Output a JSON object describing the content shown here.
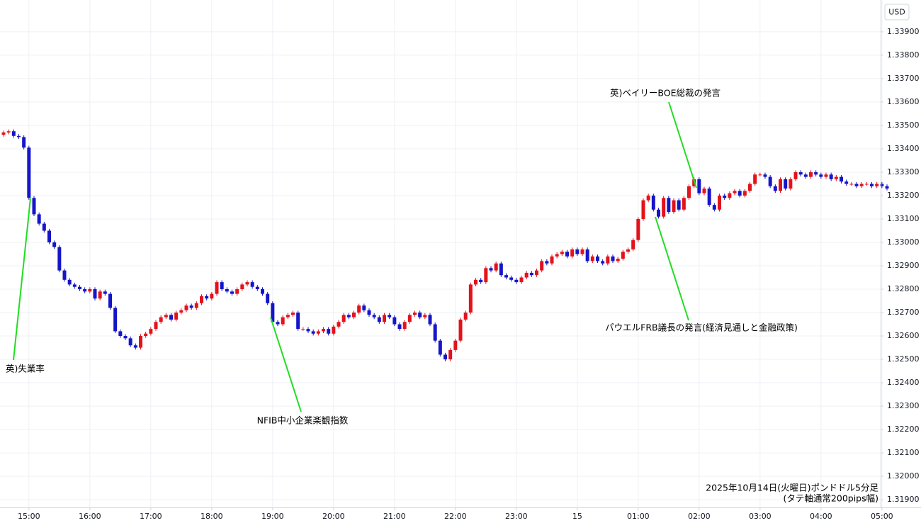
{
  "chart_data": {
    "type": "candlestick",
    "currency": "USD",
    "up_color": "#e3121b",
    "down_color": "#1515c8",
    "grid": true,
    "ylim": [
      1.31867,
      1.34036
    ],
    "yticks": [
      {
        "value": 1.319,
        "label": "1.31900"
      },
      {
        "value": 1.32,
        "label": "1.32000"
      },
      {
        "value": 1.321,
        "label": "1.32100"
      },
      {
        "value": 1.322,
        "label": "1.32200"
      },
      {
        "value": 1.323,
        "label": "1.32300"
      },
      {
        "value": 1.324,
        "label": "1.32400"
      },
      {
        "value": 1.325,
        "label": "1.32500"
      },
      {
        "value": 1.326,
        "label": "1.32600"
      },
      {
        "value": 1.327,
        "label": "1.32700"
      },
      {
        "value": 1.328,
        "label": "1.32800"
      },
      {
        "value": 1.329,
        "label": "1.32900"
      },
      {
        "value": 1.33,
        "label": "1.33000"
      },
      {
        "value": 1.331,
        "label": "1.33100"
      },
      {
        "value": 1.332,
        "label": "1.33200"
      },
      {
        "value": 1.333,
        "label": "1.33300"
      },
      {
        "value": 1.334,
        "label": "1.33400"
      },
      {
        "value": 1.335,
        "label": "1.33500"
      },
      {
        "value": 1.336,
        "label": "1.33600"
      },
      {
        "value": 1.337,
        "label": "1.33700"
      },
      {
        "value": 1.338,
        "label": "1.33800"
      },
      {
        "value": 1.339,
        "label": "1.33900"
      }
    ],
    "xticks": [
      {
        "value": "15:00",
        "label": "15:00"
      },
      {
        "value": "16:00",
        "label": "16:00"
      },
      {
        "value": "17:00",
        "label": "17:00"
      },
      {
        "value": "18:00",
        "label": "18:00"
      },
      {
        "value": "19:00",
        "label": "19:00"
      },
      {
        "value": "20:00",
        "label": "20:00"
      },
      {
        "value": "21:00",
        "label": "21:00"
      },
      {
        "value": "22:00",
        "label": "22:00"
      },
      {
        "value": "23:00",
        "label": "23:00"
      },
      {
        "value": "00:00",
        "label": "15"
      },
      {
        "value": "01:00",
        "label": "01:00"
      },
      {
        "value": "02:00",
        "label": "02:00"
      },
      {
        "value": "03:00",
        "label": "03:00"
      },
      {
        "value": "04:00",
        "label": "04:00"
      },
      {
        "value": "05:00",
        "label": "05:00"
      }
    ],
    "x": [
      "14:35",
      "14:40",
      "14:45",
      "14:50",
      "14:55",
      "15:00",
      "15:05",
      "15:10",
      "15:15",
      "15:20",
      "15:25",
      "15:30",
      "15:35",
      "15:40",
      "15:45",
      "15:50",
      "15:55",
      "16:00",
      "16:05",
      "16:10",
      "16:15",
      "16:20",
      "16:25",
      "16:30",
      "16:35",
      "16:40",
      "16:45",
      "16:50",
      "16:55",
      "17:00",
      "17:05",
      "17:10",
      "17:15",
      "17:20",
      "17:25",
      "17:30",
      "17:35",
      "17:40",
      "17:45",
      "17:50",
      "17:55",
      "18:00",
      "18:05",
      "18:10",
      "18:15",
      "18:20",
      "18:25",
      "18:30",
      "18:35",
      "18:40",
      "18:45",
      "18:50",
      "18:55",
      "19:00",
      "19:05",
      "19:10",
      "19:15",
      "19:20",
      "19:25",
      "19:30",
      "19:35",
      "19:40",
      "19:45",
      "19:50",
      "19:55",
      "20:00",
      "20:05",
      "20:10",
      "20:15",
      "20:20",
      "20:25",
      "20:30",
      "20:35",
      "20:40",
      "20:45",
      "20:50",
      "20:55",
      "21:00",
      "21:05",
      "21:10",
      "21:15",
      "21:20",
      "21:25",
      "21:30",
      "21:35",
      "21:40",
      "21:45",
      "21:50",
      "21:55",
      "22:00",
      "22:05",
      "22:10",
      "22:15",
      "22:20",
      "22:25",
      "22:30",
      "22:35",
      "22:40",
      "22:45",
      "22:50",
      "22:55",
      "23:00",
      "23:05",
      "23:10",
      "23:15",
      "23:20",
      "23:25",
      "23:30",
      "23:35",
      "23:40",
      "23:45",
      "23:50",
      "23:55",
      "00:00",
      "00:05",
      "00:10",
      "00:15",
      "00:20",
      "00:25",
      "00:30",
      "00:35",
      "00:40",
      "00:45",
      "00:50",
      "00:55",
      "01:00",
      "01:05",
      "01:10",
      "01:15",
      "01:20",
      "01:25",
      "01:30",
      "01:35",
      "01:40",
      "01:45",
      "01:50",
      "01:55",
      "02:00",
      "02:05",
      "02:10",
      "02:15",
      "02:20",
      "02:25",
      "02:30",
      "02:35",
      "02:40",
      "02:45",
      "02:50",
      "02:55",
      "03:00",
      "03:05",
      "03:10",
      "03:15",
      "03:20",
      "03:25",
      "03:30",
      "03:35",
      "03:40",
      "03:45",
      "03:50",
      "03:55",
      "04:00",
      "04:05",
      "04:10",
      "04:15",
      "04:20",
      "04:25",
      "04:30",
      "04:35",
      "04:40",
      "04:45",
      "04:50",
      "04:55",
      "05:00",
      "05:05"
    ],
    "open": [
      1.3346,
      1.3347,
      1.33475,
      1.33455,
      1.3345,
      1.33405,
      1.3319,
      1.3312,
      1.3308,
      1.3305,
      1.33,
      1.3298,
      1.3288,
      1.3284,
      1.3282,
      1.3281,
      1.328,
      1.3279,
      1.328,
      1.3276,
      1.3279,
      1.3278,
      1.3272,
      1.3262,
      1.326,
      1.3259,
      1.3256,
      1.3255,
      1.326,
      1.3261,
      1.3263,
      1.3266,
      1.3268,
      1.3269,
      1.3267,
      1.327,
      1.3271,
      1.3273,
      1.3272,
      1.3274,
      1.3277,
      1.3276,
      1.3278,
      1.3283,
      1.328,
      1.3279,
      1.3278,
      1.328,
      1.3282,
      1.3283,
      1.3281,
      1.328,
      1.3278,
      1.3274,
      1.3266,
      1.3265,
      1.3268,
      1.3269,
      1.327,
      1.3263,
      1.3263,
      1.3262,
      1.3261,
      1.3262,
      1.3263,
      1.3261,
      1.3264,
      1.3266,
      1.3269,
      1.3268,
      1.327,
      1.3273,
      1.3271,
      1.3269,
      1.3268,
      1.3266,
      1.3269,
      1.3268,
      1.3265,
      1.3263,
      1.3266,
      1.3269,
      1.327,
      1.3268,
      1.3269,
      1.3265,
      1.3258,
      1.3252,
      1.325,
      1.3254,
      1.3258,
      1.3267,
      1.327,
      1.3282,
      1.3284,
      1.3283,
      1.3289,
      1.3288,
      1.3291,
      1.3286,
      1.3285,
      1.3284,
      1.3283,
      1.3285,
      1.3287,
      1.3286,
      1.3288,
      1.3292,
      1.3291,
      1.3294,
      1.3295,
      1.3296,
      1.3294,
      1.3297,
      1.3295,
      1.3297,
      1.3292,
      1.3294,
      1.3292,
      1.3291,
      1.3294,
      1.3292,
      1.3293,
      1.3296,
      1.3297,
      1.3301,
      1.331,
      1.3318,
      1.332,
      1.3314,
      1.3311,
      1.3319,
      1.3313,
      1.3318,
      1.3314,
      1.3319,
      1.3324,
      1.3327,
      1.3321,
      1.3323,
      1.3316,
      1.3314,
      1.332,
      1.3319,
      1.3321,
      1.3322,
      1.332,
      1.3322,
      1.3325,
      1.3329,
      1.3329,
      1.3328,
      1.3324,
      1.3322,
      1.3327,
      1.3323,
      1.3327,
      1.333,
      1.3329,
      1.3328,
      1.333,
      1.3329,
      1.3328,
      1.3329,
      1.3327,
      1.3328,
      1.3326,
      1.3325,
      1.3325,
      1.3324,
      1.3325,
      1.3325,
      1.3324,
      1.3325,
      1.3324
    ],
    "high": [
      1.33478,
      1.33483,
      1.33483,
      1.33463,
      1.33458,
      1.33413,
      1.33198,
      1.33128,
      1.33088,
      1.33058,
      1.33008,
      1.32988,
      1.32888,
      1.32848,
      1.32828,
      1.32818,
      1.32808,
      1.32808,
      1.32808,
      1.32798,
      1.32798,
      1.32788,
      1.32728,
      1.32628,
      1.32608,
      1.32598,
      1.32568,
      1.32608,
      1.32618,
      1.32638,
      1.32668,
      1.32688,
      1.32698,
      1.32698,
      1.32708,
      1.32718,
      1.32738,
      1.32738,
      1.32748,
      1.32778,
      1.32778,
      1.32788,
      1.32838,
      1.32838,
      1.32808,
      1.32798,
      1.32808,
      1.32828,
      1.32838,
      1.32838,
      1.32818,
      1.32808,
      1.32788,
      1.32748,
      1.32668,
      1.32688,
      1.32698,
      1.32708,
      1.32708,
      1.32638,
      1.32638,
      1.32628,
      1.32628,
      1.32638,
      1.32638,
      1.32648,
      1.32668,
      1.32698,
      1.32698,
      1.32708,
      1.32738,
      1.32738,
      1.32718,
      1.32698,
      1.32688,
      1.32698,
      1.32698,
      1.32688,
      1.32658,
      1.32668,
      1.32698,
      1.32708,
      1.32708,
      1.32698,
      1.32698,
      1.32658,
      1.32588,
      1.32528,
      1.32548,
      1.32588,
      1.32678,
      1.32708,
      1.32828,
      1.32848,
      1.32848,
      1.32898,
      1.32898,
      1.32918,
      1.32918,
      1.32868,
      1.32858,
      1.32848,
      1.32858,
      1.32878,
      1.32878,
      1.32888,
      1.32928,
      1.32928,
      1.32948,
      1.32958,
      1.32968,
      1.32968,
      1.32978,
      1.32978,
      1.32978,
      1.32978,
      1.32948,
      1.32948,
      1.32928,
      1.32948,
      1.32948,
      1.32938,
      1.32968,
      1.32978,
      1.33018,
      1.33108,
      1.33188,
      1.33208,
      1.33208,
      1.33148,
      1.33198,
      1.33198,
      1.33188,
      1.33188,
      1.33198,
      1.33248,
      1.33278,
      1.33278,
      1.33238,
      1.33238,
      1.33168,
      1.33208,
      1.33208,
      1.33218,
      1.33228,
      1.33228,
      1.33228,
      1.33258,
      1.33298,
      1.33298,
      1.33298,
      1.33288,
      1.33248,
      1.33278,
      1.33278,
      1.33278,
      1.33308,
      1.33308,
      1.33298,
      1.33308,
      1.33308,
      1.33298,
      1.33298,
      1.33298,
      1.33288,
      1.33288,
      1.33268,
      1.33258,
      1.33258,
      1.33258,
      1.33258,
      1.33258,
      1.33258,
      1.33258,
      1.33248
    ],
    "low": [
      1.33452,
      1.33462,
      1.33447,
      1.33442,
      1.33397,
      1.33182,
      1.33112,
      1.33072,
      1.33042,
      1.32992,
      1.32972,
      1.32872,
      1.32832,
      1.32812,
      1.32802,
      1.32792,
      1.32782,
      1.32782,
      1.32752,
      1.32752,
      1.32772,
      1.32712,
      1.32612,
      1.32592,
      1.32582,
      1.32552,
      1.32542,
      1.32542,
      1.32592,
      1.32602,
      1.32622,
      1.32652,
      1.32672,
      1.32662,
      1.32662,
      1.32692,
      1.32702,
      1.32712,
      1.32712,
      1.32732,
      1.32752,
      1.32752,
      1.32772,
      1.32792,
      1.32782,
      1.32772,
      1.32772,
      1.32792,
      1.32812,
      1.32802,
      1.32792,
      1.32772,
      1.32732,
      1.32652,
      1.32642,
      1.32642,
      1.32672,
      1.32682,
      1.32622,
      1.32622,
      1.32612,
      1.32602,
      1.32602,
      1.32612,
      1.32602,
      1.32602,
      1.32632,
      1.32652,
      1.32672,
      1.32672,
      1.32692,
      1.32702,
      1.32682,
      1.32672,
      1.32652,
      1.32652,
      1.32672,
      1.32642,
      1.32622,
      1.32622,
      1.32652,
      1.32682,
      1.32672,
      1.32672,
      1.32642,
      1.32572,
      1.32512,
      1.32492,
      1.32492,
      1.32532,
      1.32572,
      1.32662,
      1.32692,
      1.32812,
      1.32822,
      1.32822,
      1.32872,
      1.32872,
      1.32852,
      1.32842,
      1.32832,
      1.32822,
      1.32822,
      1.32842,
      1.32852,
      1.32852,
      1.32872,
      1.32902,
      1.32902,
      1.32932,
      1.32942,
      1.32932,
      1.32932,
      1.32942,
      1.32942,
      1.32912,
      1.32912,
      1.32912,
      1.32902,
      1.32902,
      1.32912,
      1.32912,
      1.32922,
      1.32952,
      1.32962,
      1.33002,
      1.33092,
      1.33172,
      1.33132,
      1.33102,
      1.33102,
      1.33122,
      1.33122,
      1.33132,
      1.33132,
      1.33182,
      1.33232,
      1.33202,
      1.33202,
      1.33152,
      1.33132,
      1.33132,
      1.33182,
      1.33182,
      1.33202,
      1.33192,
      1.33192,
      1.33212,
      1.33242,
      1.33282,
      1.33272,
      1.33232,
      1.33212,
      1.33212,
      1.33222,
      1.33222,
      1.33262,
      1.33282,
      1.33272,
      1.33272,
      1.33282,
      1.33272,
      1.33272,
      1.33262,
      1.33262,
      1.33252,
      1.33242,
      1.33242,
      1.33232,
      1.33232,
      1.33242,
      1.33232,
      1.33232,
      1.33232,
      1.33222
    ],
    "close": [
      1.3347,
      1.33475,
      1.33455,
      1.3345,
      1.33405,
      1.3319,
      1.3312,
      1.3308,
      1.3305,
      1.33,
      1.3298,
      1.3288,
      1.3284,
      1.3282,
      1.3281,
      1.328,
      1.3279,
      1.328,
      1.3276,
      1.3279,
      1.3278,
      1.3272,
      1.3262,
      1.326,
      1.3259,
      1.3256,
      1.3255,
      1.326,
      1.3261,
      1.3263,
      1.3266,
      1.3268,
      1.3269,
      1.3267,
      1.327,
      1.3271,
      1.3273,
      1.3272,
      1.3274,
      1.3277,
      1.3276,
      1.3278,
      1.3283,
      1.328,
      1.3279,
      1.3278,
      1.328,
      1.3282,
      1.3283,
      1.3281,
      1.328,
      1.3278,
      1.3274,
      1.3266,
      1.3265,
      1.3268,
      1.3269,
      1.327,
      1.3263,
      1.3263,
      1.3262,
      1.3261,
      1.3262,
      1.3263,
      1.3261,
      1.3264,
      1.3266,
      1.3269,
      1.3268,
      1.327,
      1.3273,
      1.3271,
      1.3269,
      1.3268,
      1.3266,
      1.3269,
      1.3268,
      1.3265,
      1.3263,
      1.3266,
      1.3269,
      1.327,
      1.3268,
      1.3269,
      1.3265,
      1.3258,
      1.3252,
      1.325,
      1.3254,
      1.3258,
      1.3267,
      1.327,
      1.3282,
      1.3284,
      1.3283,
      1.3289,
      1.3288,
      1.3291,
      1.3286,
      1.3285,
      1.3284,
      1.3283,
      1.3285,
      1.3287,
      1.3286,
      1.3288,
      1.3292,
      1.3291,
      1.3294,
      1.3295,
      1.3296,
      1.3294,
      1.3297,
      1.3295,
      1.3297,
      1.3292,
      1.3294,
      1.3292,
      1.3291,
      1.3294,
      1.3292,
      1.3293,
      1.3296,
      1.3297,
      1.3301,
      1.331,
      1.3318,
      1.332,
      1.3314,
      1.3311,
      1.3319,
      1.3313,
      1.3318,
      1.3314,
      1.3319,
      1.3324,
      1.3327,
      1.3321,
      1.3323,
      1.3316,
      1.3314,
      1.332,
      1.3319,
      1.3321,
      1.3322,
      1.332,
      1.3322,
      1.3325,
      1.3329,
      1.3329,
      1.3328,
      1.3324,
      1.3322,
      1.3327,
      1.3323,
      1.3327,
      1.333,
      1.3329,
      1.3328,
      1.333,
      1.3329,
      1.3328,
      1.3329,
      1.3327,
      1.3328,
      1.3326,
      1.3325,
      1.3325,
      1.3324,
      1.3325,
      1.3325,
      1.3324,
      1.3325,
      1.3324,
      1.3323
    ],
    "annotations": [
      {
        "text": "英)失業率"
      },
      {
        "text": "NFIB中小企業楽観指数"
      },
      {
        "text": "英)ベイリーBOE総裁の発言"
      },
      {
        "text": "パウエルFRB議長の発言(経済見通しと金融政策)"
      }
    ],
    "note": [
      "2025年10月14日(火曜日)ポンドドル5分足",
      "(タテ軸通常200pips幅)"
    ]
  }
}
